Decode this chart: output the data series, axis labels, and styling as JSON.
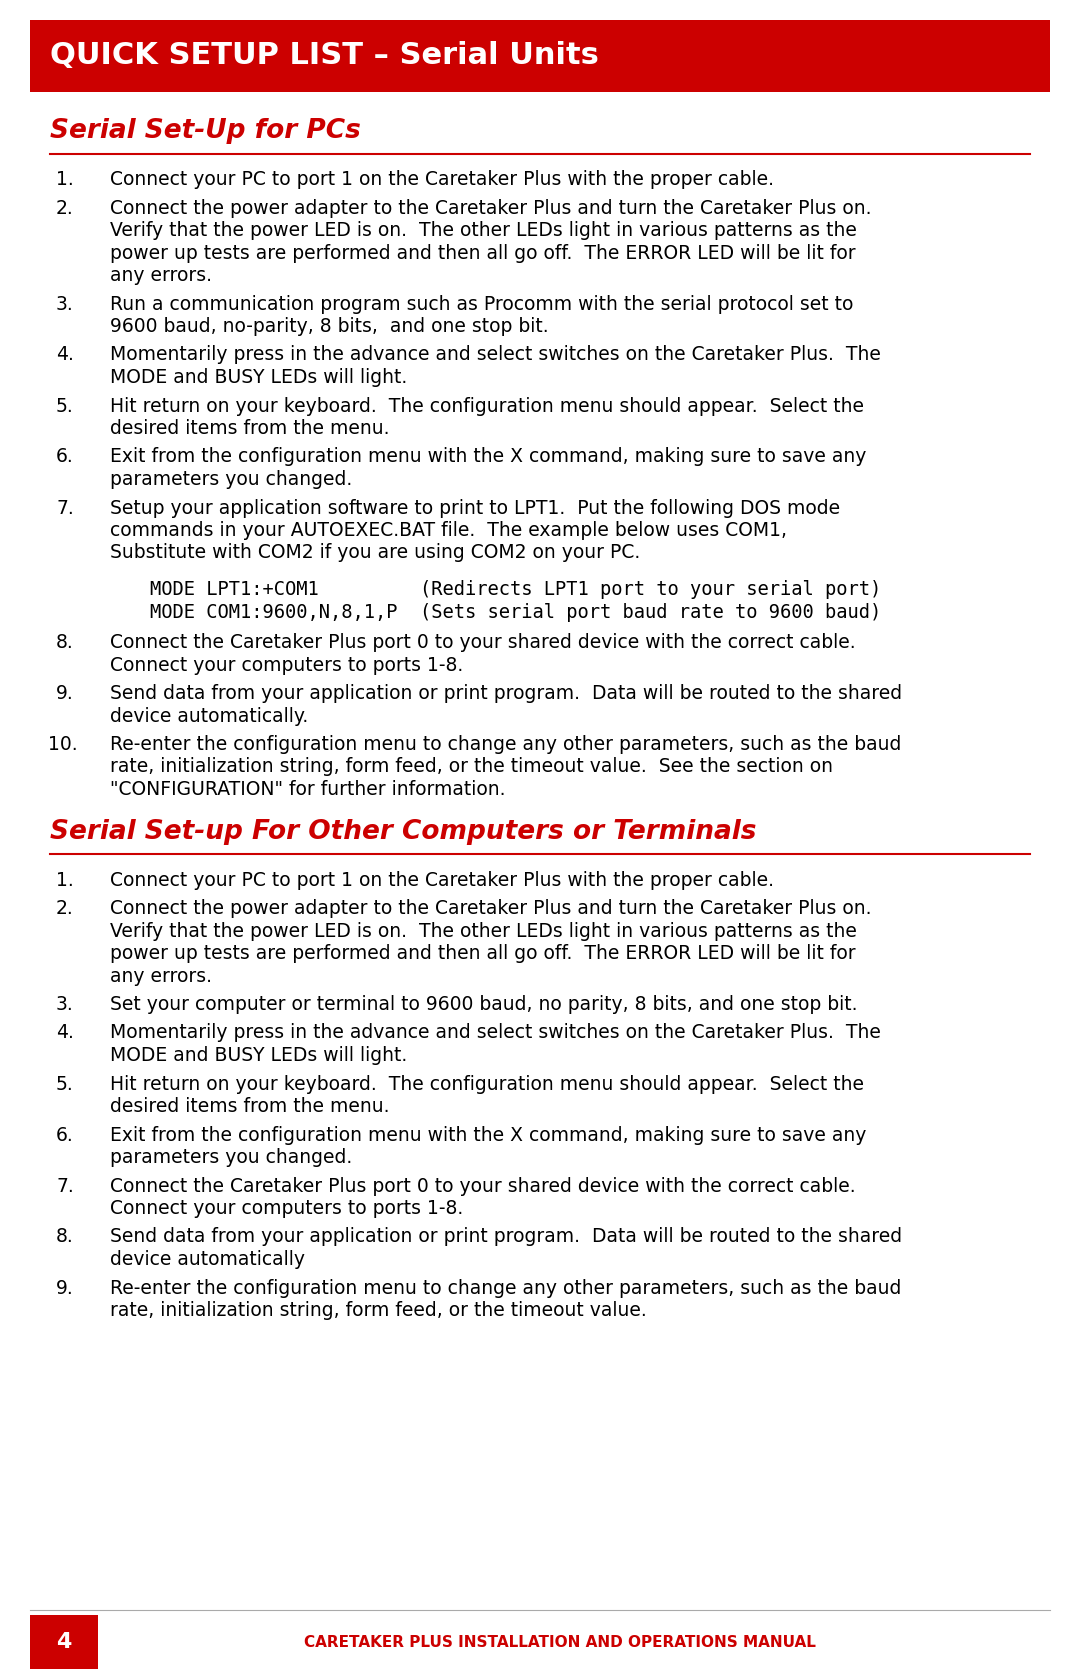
{
  "bg_color": "#ffffff",
  "red_color": "#cc0000",
  "header_bg": "#cc0000",
  "header_text": "QUICK SETUP LIST – Serial Units",
  "header_text_color": "#ffffff",
  "section1_title": "Serial Set-Up for PCs",
  "section2_title": "Serial Set-up For Other Computers or Terminals",
  "section_title_color": "#cc0000",
  "footer_text": "CARETAKER PLUS INSTALLATION AND OPERATIONS MANUAL",
  "footer_text_color": "#cc0000",
  "footer_page": "4",
  "footer_page_color": "#ffffff",
  "footer_page_bg": "#cc0000",
  "body_text_color": "#000000",
  "mono_font": "DejaVu Sans Mono",
  "section1_items": [
    "Connect your PC to port 1 on the Caretaker Plus with the proper cable.",
    "Connect the power adapter to the Caretaker Plus and turn the Caretaker Plus on.\n    Verify that the power LED is on.  The other LEDs light in various patterns as the\n    power up tests are performed and then all go off.  The ERROR LED will be lit for\n    any errors.",
    "Run a communication program such as Procomm with the serial protocol set to\n    9600 baud, no-parity, 8 bits,  and one stop bit.",
    "Momentarily press in the advance and select switches on the Caretaker Plus.  The\n    MODE and BUSY LEDs will light.",
    "Hit return on your keyboard.  The configuration menu should appear.  Select the\n    desired items from the menu.",
    "Exit from the configuration menu with the X command, making sure to save any\n    parameters you changed.",
    "Setup your application software to print to LPT1.  Put the following DOS mode\n    commands in your AUTOEXEC.BAT file.  The example below uses COM1,\n    Substitute with COM2 if you are using COM2 on your PC.",
    "Connect the Caretaker Plus port 0 to your shared device with the correct cable.\n    Connect your computers to ports 1-8.",
    "Send data from your application or print program.  Data will be routed to the shared\n    device automatically.",
    "Re-enter the configuration menu to change any other parameters, such as the baud\n    rate, initialization string, form feed, or the timeout value.  See the section on\n    \"CONFIGURATION\" for further information."
  ],
  "mode_lines": [
    "    MODE LPT1:+COM1         (Redirects LPT1 port to your serial port)",
    "    MODE COM1:9600,N,8,1,P  (Sets serial port baud rate to 9600 baud)"
  ],
  "section2_items": [
    "Connect your PC to port 1 on the Caretaker Plus with the proper cable.",
    "Connect the power adapter to the Caretaker Plus and turn the Caretaker Plus on.\n    Verify that the power LED is on.  The other LEDs light in various patterns as the\n    power up tests are performed and then all go off.  The ERROR LED will be lit for\n    any errors.",
    "Set your computer or terminal to 9600 baud, no parity, 8 bits, and one stop bit.",
    "Momentarily press in the advance and select switches on the Caretaker Plus.  The\n    MODE and BUSY LEDs will light.",
    "Hit return on your keyboard.  The configuration menu should appear.  Select the\n    desired items from the menu.",
    "Exit from the configuration menu with the X command, making sure to save any\n    parameters you changed.",
    "Connect the Caretaker Plus port 0 to your shared device with the correct cable.\n    Connect your computers to ports 1-8.",
    "Send data from your application or print program.  Data will be routed to the shared\n    device automatically",
    "Re-enter the configuration menu to change any other parameters, such as the baud\n    rate, initialization string, form feed, or the timeout value."
  ]
}
